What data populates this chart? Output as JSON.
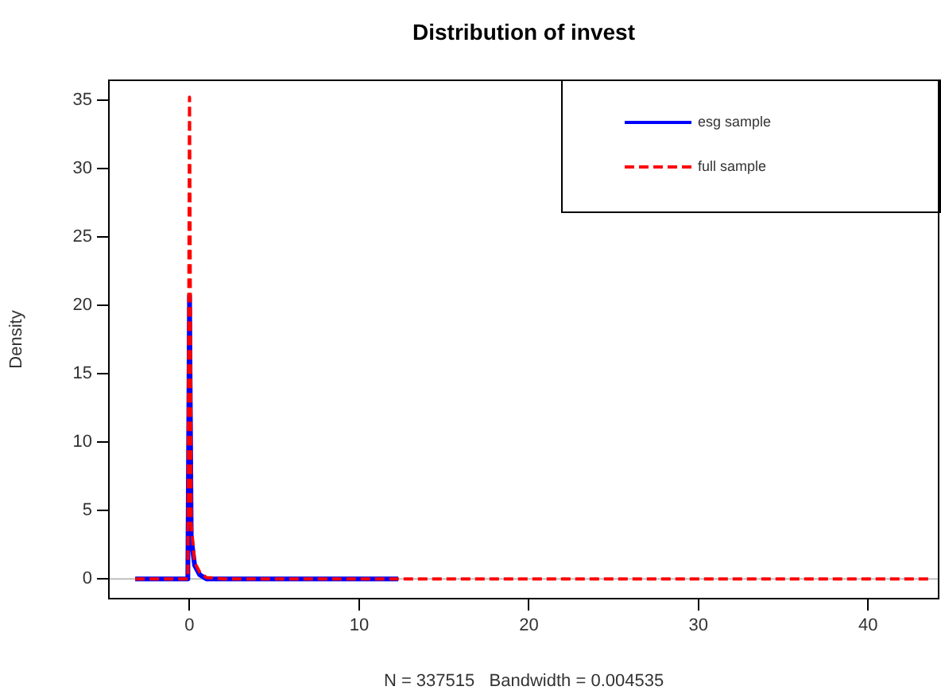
{
  "chart_data": {
    "type": "line",
    "title": "Distribution of invest",
    "xlabel": "N = 337515   Bandwidth = 0.004535",
    "ylabel": "Density",
    "xlim": [
      -4.8,
      44.2
    ],
    "ylim": [
      -1.5,
      36.5
    ],
    "xticks": [
      0,
      10,
      20,
      30,
      40
    ],
    "yticks": [
      0,
      5,
      10,
      15,
      20,
      25,
      30,
      35
    ],
    "grid": false,
    "legend": "top right",
    "marker": "none",
    "ref_lines": [
      {
        "axis": "y",
        "value": 0,
        "color": "#bebebe"
      }
    ],
    "series": [
      {
        "name": "esg sample",
        "color": "#0000ff",
        "line_style": "solid",
        "x": [
          -3.2,
          -0.1,
          0,
          0.1,
          0.3,
          0.6,
          1,
          2,
          12.3
        ],
        "values": [
          0,
          0,
          20.7,
          3,
          1,
          0.3,
          0,
          0,
          0
        ]
      },
      {
        "name": "full sample",
        "color": "#ff0000",
        "line_style": "dashed",
        "x": [
          -3.2,
          -0.1,
          0,
          0.1,
          0.3,
          0.6,
          1,
          2,
          43.6
        ],
        "values": [
          0,
          0,
          35.2,
          4,
          1.2,
          0.5,
          0.1,
          0,
          0
        ]
      }
    ]
  }
}
